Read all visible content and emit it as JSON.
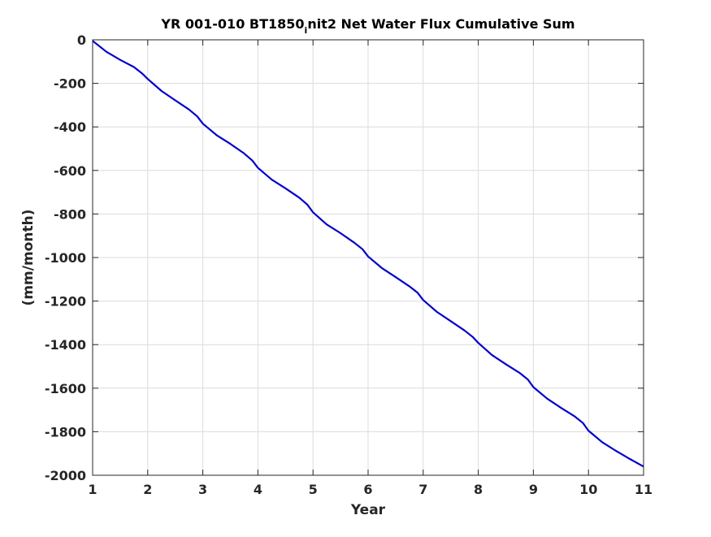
{
  "chart_data": {
    "type": "line",
    "title": "YR 001-010 BT1850",
    "title_subscript": "i",
    "title_suffix": "nit2 Net Water Flux Cumulative Sum",
    "xlabel": "Year",
    "ylabel": "(mm/month)",
    "xlim": [
      1,
      11
    ],
    "ylim": [
      -2000,
      0
    ],
    "xticks": [
      1,
      2,
      3,
      4,
      5,
      6,
      7,
      8,
      9,
      10,
      11
    ],
    "yticks": [
      0,
      -200,
      -400,
      -600,
      -800,
      -1000,
      -1200,
      -1400,
      -1600,
      -1800,
      -2000
    ],
    "grid": true,
    "line_color": "#0000cc",
    "series": [
      {
        "x": [
          1.0,
          1.25,
          1.5,
          1.75,
          1.9,
          2.0,
          2.25,
          2.5,
          2.75,
          2.9,
          3.0,
          3.25,
          3.5,
          3.75,
          3.9,
          4.0,
          4.25,
          4.5,
          4.75,
          4.9,
          5.0,
          5.25,
          5.5,
          5.75,
          5.9,
          6.0,
          6.25,
          6.5,
          6.75,
          6.9,
          7.0,
          7.25,
          7.5,
          7.75,
          7.9,
          8.0,
          8.25,
          8.5,
          8.75,
          8.9,
          9.0,
          9.25,
          9.5,
          9.75,
          9.9,
          10.0,
          10.25,
          10.5,
          10.75,
          11.0
        ],
        "y": [
          -5,
          -55,
          -92,
          -125,
          -155,
          -180,
          -235,
          -278,
          -320,
          -352,
          -385,
          -438,
          -478,
          -522,
          -555,
          -588,
          -642,
          -682,
          -725,
          -758,
          -792,
          -848,
          -888,
          -932,
          -962,
          -995,
          -1048,
          -1090,
          -1132,
          -1162,
          -1195,
          -1250,
          -1292,
          -1335,
          -1365,
          -1392,
          -1448,
          -1490,
          -1530,
          -1560,
          -1595,
          -1648,
          -1690,
          -1730,
          -1760,
          -1795,
          -1848,
          -1888,
          -1925,
          -1960
        ]
      }
    ]
  }
}
